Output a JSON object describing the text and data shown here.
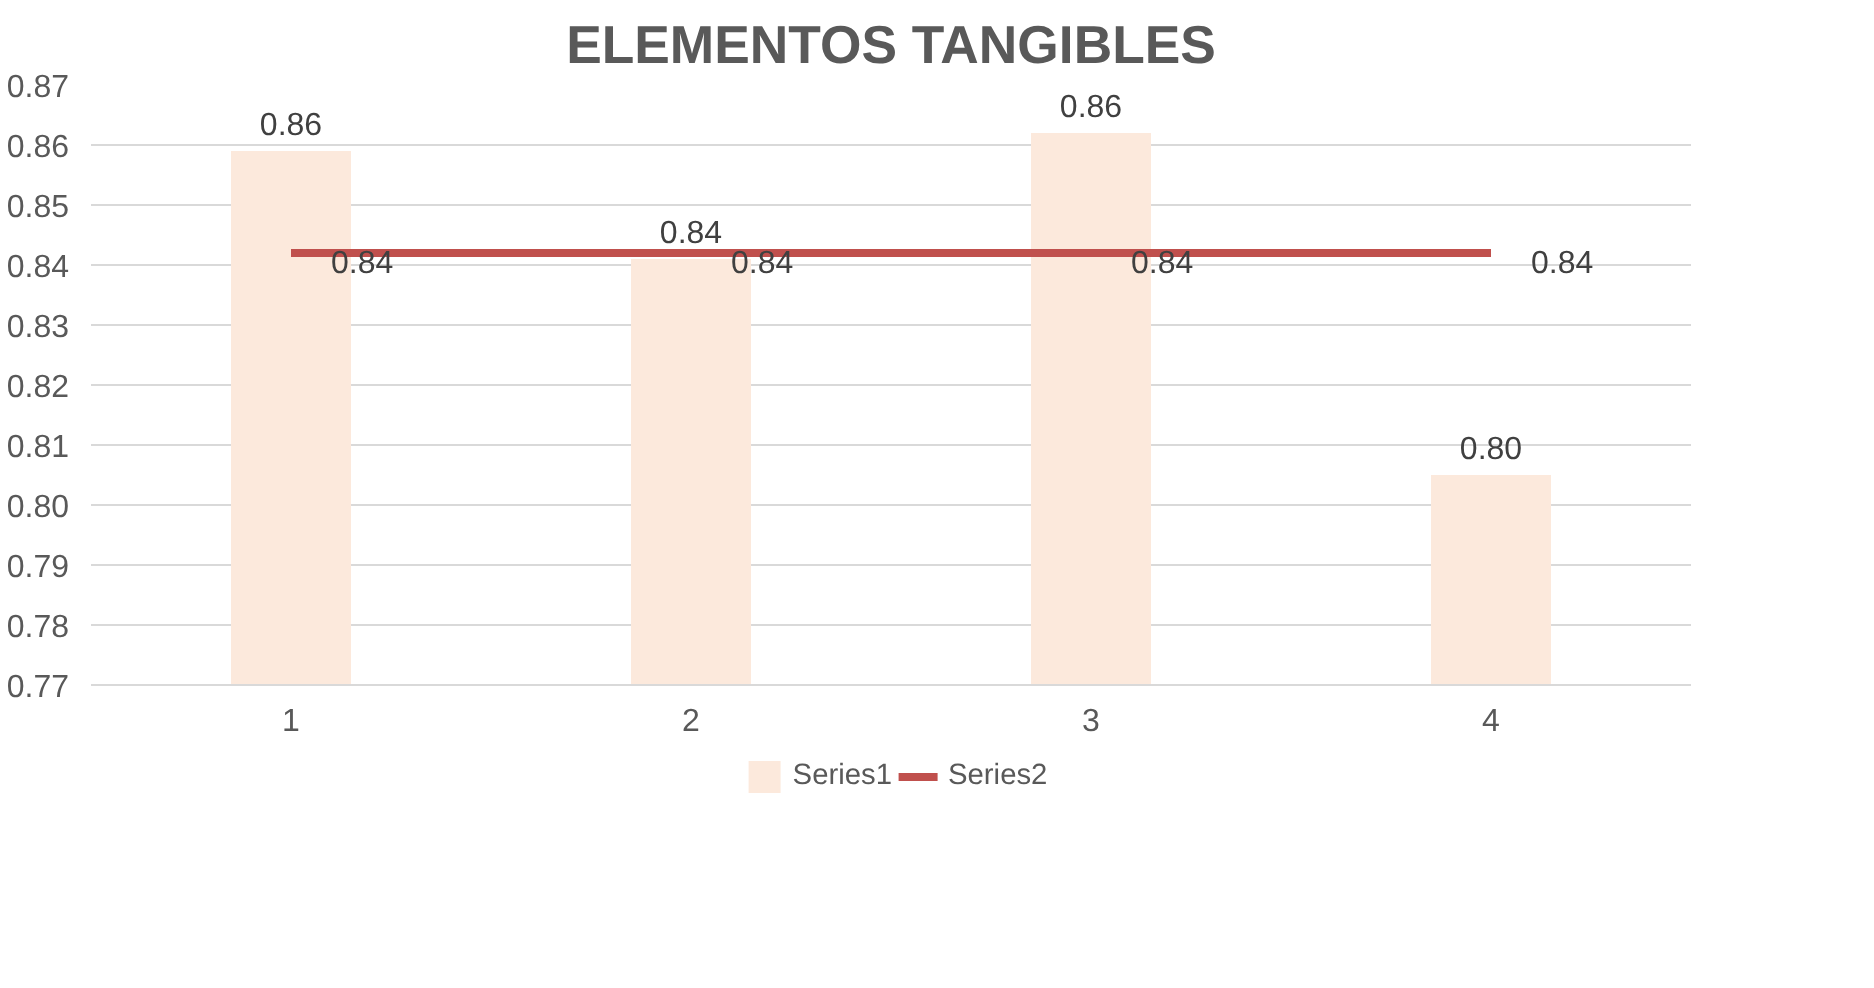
{
  "chart_data": {
    "type": "bar",
    "title": "ELEMENTOS TANGIBLES",
    "categories": [
      "1",
      "2",
      "3",
      "4"
    ],
    "series": [
      {
        "name": "Series1",
        "color": "#fce9dc",
        "values": [
          0.859,
          0.841,
          0.862,
          0.805
        ],
        "value_labels": [
          "0.86",
          "0.84",
          "0.86",
          "0.80"
        ]
      },
      {
        "name": "Series2",
        "type": "line",
        "color": "#c0504d",
        "values": [
          0.842,
          0.842,
          0.842,
          0.842
        ],
        "value_labels": [
          "0.84",
          "0.84",
          "0.84",
          "0.84"
        ]
      }
    ],
    "ylim": [
      0.77,
      0.87
    ],
    "yticks": [
      0.77,
      0.78,
      0.79,
      {
        "value": 0.8,
        "label": "0.80"
      },
      0.81,
      0.82,
      0.83,
      0.84,
      0.85,
      0.86,
      0.87
    ],
    "grid": "y",
    "legend": "bottom",
    "marker": "none",
    "line_style": "solid"
  }
}
